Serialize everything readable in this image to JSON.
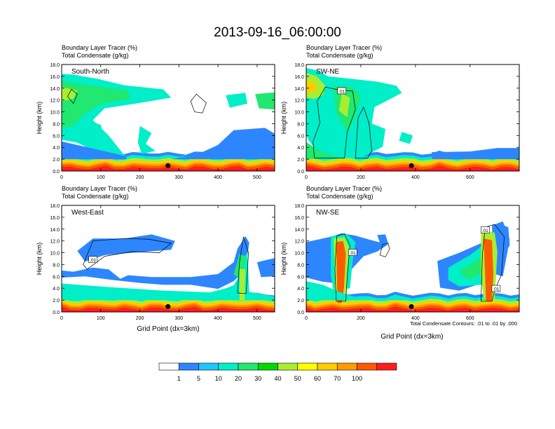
{
  "figure": {
    "title": "2013-09-16_06:00:00"
  },
  "colorbar": {
    "colors": [
      "#ffffff",
      "#2e86ff",
      "#1ec8ff",
      "#00eec8",
      "#20e870",
      "#00d800",
      "#a8ee30",
      "#ffff00",
      "#ffcc00",
      "#ff9c00",
      "#ff5a00",
      "#ff1e1e"
    ],
    "labels": [
      "1",
      "5",
      "10",
      "20",
      "30",
      "40",
      "50",
      "60",
      "70",
      "100"
    ]
  },
  "chart_data": [
    {
      "type": "heatmap",
      "panel": "South-North",
      "header": [
        "Boundary Layer Tracer   (%)",
        "Total Condensate   (g/kg)"
      ],
      "xlabel": "",
      "ylabel": "Height (km)",
      "xlim": [
        0,
        545
      ],
      "ylim": [
        0,
        18
      ],
      "xticks": [
        "0",
        "100",
        "200",
        "300",
        "400",
        "500"
      ],
      "yticks": [
        "0.0",
        "2.0",
        "4.0",
        "6.0",
        "8.0",
        "10.0",
        "12.0",
        "14.0",
        "16.0",
        "18.0"
      ],
      "marker": {
        "x": 272,
        "y": 0.9
      },
      "contour_labels": [],
      "note": ""
    },
    {
      "type": "heatmap",
      "panel": "SW-NE",
      "header": [
        "Boundary Layer Tracer   (%)",
        "Total Condensate   (g/kg)"
      ],
      "xlabel": "",
      "ylabel": "Height (km)",
      "xlim": [
        0,
        780
      ],
      "ylim": [
        0,
        18
      ],
      "xticks": [
        "0",
        "200",
        "400",
        "600"
      ],
      "yticks": [
        "0.0",
        "2.0",
        "4.0",
        "6.0",
        "8.0",
        "10.0",
        "12.0",
        "14.0",
        "16.0",
        "18.0"
      ],
      "marker": {
        "x": 385,
        "y": 0.9
      },
      "contour_labels": [
        {
          "text": ".01",
          "x": 130,
          "y": 13.5
        }
      ],
      "note": ""
    },
    {
      "type": "heatmap",
      "panel": "West-East",
      "header": [
        "Boundary Layer Tracer   (%)",
        "Total Condensate   (g/kg)"
      ],
      "xlabel": "Grid Point (dx=3km)",
      "ylabel": "Height (km)",
      "xlim": [
        0,
        545
      ],
      "ylim": [
        0,
        18
      ],
      "xticks": [
        "0",
        "100",
        "200",
        "300",
        "400",
        "500"
      ],
      "yticks": [
        "0.0",
        "2.0",
        "4.0",
        "6.0",
        "8.0",
        "10.0",
        "12.0",
        "14.0",
        "16.0",
        "18.0"
      ],
      "marker": {
        "x": 272,
        "y": 0.9
      },
      "contour_labels": [
        {
          "text": ".01",
          "x": 80,
          "y": 8.8
        }
      ],
      "note": ""
    },
    {
      "type": "heatmap",
      "panel": "NW-SE",
      "header": [
        "Boundary Layer Tracer   (%)",
        "Total Condensate   (g/kg)"
      ],
      "xlabel": "Grid Point (dx=3km)",
      "ylabel": "Height (km)",
      "xlim": [
        0,
        780
      ],
      "ylim": [
        0,
        18
      ],
      "xticks": [
        "0",
        "200",
        "400",
        "600"
      ],
      "yticks": [
        "0.0",
        "2.0",
        "4.0",
        "6.0",
        "8.0",
        "10.0",
        "12.0",
        "14.0",
        "16.0",
        "18.0"
      ],
      "marker": {
        "x": 385,
        "y": 0.9
      },
      "contour_labels": [
        {
          "text": ".01",
          "x": 170,
          "y": 10.0
        },
        {
          "text": ".01",
          "x": 655,
          "y": 13.8
        },
        {
          "text": ".01",
          "x": 695,
          "y": 3.9
        }
      ],
      "note": "Total Condensate Contours: .01 to .01 by .000"
    }
  ]
}
